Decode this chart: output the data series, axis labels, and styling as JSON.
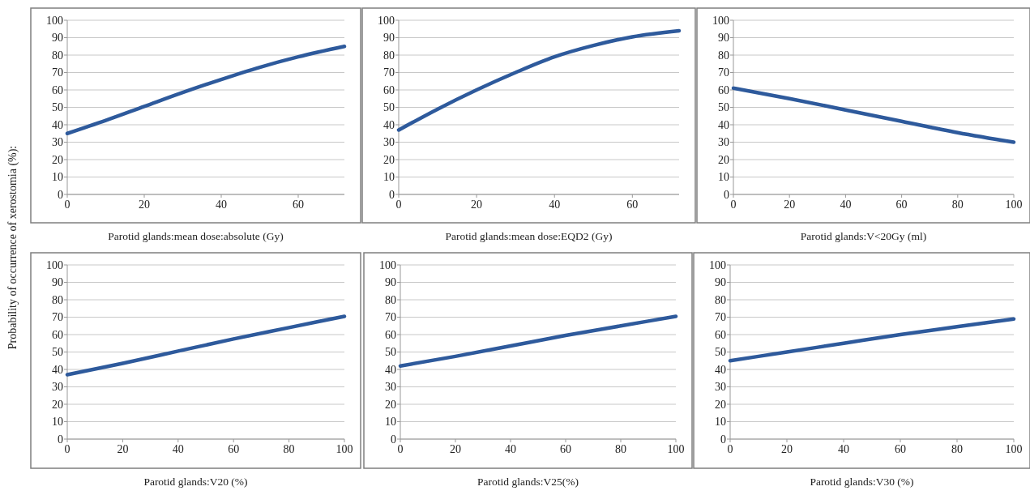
{
  "chart_data": [
    {
      "type": "line",
      "xlabel": "Parotid glands:mean dose:absolute (Gy)",
      "ylabel": "Probability of occurrence of xerostomia (%):",
      "x": [
        0,
        10,
        20,
        30,
        40,
        50,
        60,
        72
      ],
      "series": [
        {
          "color": "#2e5a9c",
          "values": [
            35,
            42.5,
            50.5,
            58.5,
            66,
            73,
            79,
            85
          ]
        }
      ],
      "xlim": [
        0,
        72
      ],
      "xticks": [
        0,
        20,
        40,
        60
      ],
      "ylim": [
        0,
        100
      ],
      "yticks": [
        0,
        10,
        20,
        30,
        40,
        50,
        60,
        70,
        80,
        90,
        100
      ],
      "grid": "y"
    },
    {
      "type": "line",
      "xlabel": "Parotid glands:mean dose:EQD2 (Gy)",
      "x": [
        0,
        10,
        20,
        30,
        40,
        50,
        60,
        72
      ],
      "series": [
        {
          "color": "#2e5a9c",
          "values": [
            37,
            49,
            60,
            70,
            79,
            85.5,
            90.5,
            94
          ]
        }
      ],
      "xlim": [
        0,
        72
      ],
      "xticks": [
        0,
        20,
        40,
        60
      ],
      "ylim": [
        0,
        100
      ],
      "yticks": [
        0,
        10,
        20,
        30,
        40,
        50,
        60,
        70,
        80,
        90,
        100
      ],
      "grid": "y"
    },
    {
      "type": "line",
      "xlabel": "Parotid glands:V<20Gy (ml)",
      "x": [
        0,
        20,
        40,
        60,
        80,
        100
      ],
      "series": [
        {
          "color": "#2e5a9c",
          "values": [
            61,
            55,
            48.5,
            42,
            35.5,
            30
          ]
        }
      ],
      "xlim": [
        0,
        100
      ],
      "xticks": [
        0,
        20,
        40,
        60,
        80,
        100
      ],
      "ylim": [
        0,
        100
      ],
      "yticks": [
        0,
        10,
        20,
        30,
        40,
        50,
        60,
        70,
        80,
        90,
        100
      ],
      "grid": "y"
    },
    {
      "type": "line",
      "xlabel": "Parotid glands:V20 (%)",
      "x": [
        0,
        20,
        40,
        60,
        80,
        100
      ],
      "series": [
        {
          "color": "#2e5a9c",
          "values": [
            37,
            43.5,
            50.5,
            57.5,
            64,
            70.5
          ]
        }
      ],
      "xlim": [
        0,
        100
      ],
      "xticks": [
        0,
        20,
        40,
        60,
        80,
        100
      ],
      "ylim": [
        0,
        100
      ],
      "yticks": [
        0,
        10,
        20,
        30,
        40,
        50,
        60,
        70,
        80,
        90,
        100
      ],
      "grid": "y"
    },
    {
      "type": "line",
      "xlabel": "Parotid glands:V25(%)",
      "x": [
        0,
        20,
        40,
        60,
        80,
        100
      ],
      "series": [
        {
          "color": "#2e5a9c",
          "values": [
            42,
            47.5,
            53.5,
            59.5,
            65,
            70.5
          ]
        }
      ],
      "xlim": [
        0,
        100
      ],
      "xticks": [
        0,
        20,
        40,
        60,
        80,
        100
      ],
      "ylim": [
        0,
        100
      ],
      "yticks": [
        0,
        10,
        20,
        30,
        40,
        50,
        60,
        70,
        80,
        90,
        100
      ],
      "grid": "y"
    },
    {
      "type": "line",
      "xlabel": "Parotid glands:V30 (%)",
      "x": [
        0,
        20,
        40,
        60,
        80,
        100
      ],
      "series": [
        {
          "color": "#2e5a9c",
          "values": [
            45,
            50,
            55,
            60,
            64.5,
            69
          ]
        }
      ],
      "xlim": [
        0,
        100
      ],
      "xticks": [
        0,
        20,
        40,
        60,
        80,
        100
      ],
      "ylim": [
        0,
        100
      ],
      "yticks": [
        0,
        10,
        20,
        30,
        40,
        50,
        60,
        70,
        80,
        90,
        100
      ],
      "grid": "y"
    }
  ]
}
